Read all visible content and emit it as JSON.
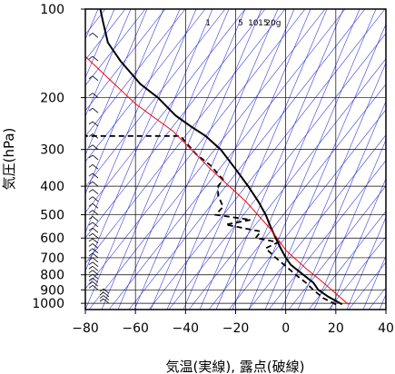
{
  "chart_data": {
    "type": "line",
    "xlabel": "気温(実線), 露点(破線)",
    "ylabel": "気圧(hPa)",
    "xlim": [
      -80,
      40
    ],
    "ylim": [
      1050,
      100
    ],
    "yscale": "log",
    "x_ticks": [
      "−80",
      "−60",
      "−40",
      "−20",
      "0",
      "20",
      "40"
    ],
    "x_tick_values": [
      -80,
      -60,
      -40,
      -20,
      0,
      20,
      40
    ],
    "y_ticks": [
      "100",
      "200",
      "300",
      "400",
      "500",
      "600",
      "700",
      "800",
      "900",
      "1000"
    ],
    "y_tick_values": [
      100,
      200,
      300,
      400,
      500,
      600,
      700,
      800,
      900,
      1000
    ],
    "mixing_ratio_labels": [
      "1",
      "5",
      "10",
      "15",
      "20g"
    ],
    "grid": true,
    "colors": {
      "temperature": "#000000",
      "dewpoint": "#000000",
      "parcel": "#ff0000",
      "background_lines": "#3b3bdc",
      "grid": "#000000"
    },
    "series": [
      {
        "style": "solid",
        "x": [
          22.5,
          17,
          13,
          11,
          7,
          2,
          0,
          -2,
          -4,
          -6,
          -8,
          -11,
          -15,
          -20,
          -26,
          -32,
          -38,
          -44,
          -51,
          -58,
          -66,
          -71,
          -73,
          -74
        ],
        "y": [
          1008,
          950,
          900,
          850,
          800,
          740,
          700,
          650,
          600,
          550,
          500,
          450,
          400,
          350,
          300,
          270,
          250,
          230,
          200,
          180,
          150,
          130,
          110,
          100
        ]
      },
      {
        "style": "dashed",
        "x": [
          20,
          15,
          11,
          8,
          4,
          1,
          -4,
          -8,
          -3,
          -12,
          -10,
          -24,
          -14,
          -28,
          -25,
          -27,
          -27,
          -25,
          -30,
          -36,
          -42,
          -58,
          -80
        ],
        "y": [
          1008,
          960,
          900,
          850,
          800,
          760,
          700,
          650,
          620,
          600,
          570,
          540,
          520,
          500,
          470,
          430,
          400,
          380,
          340,
          310,
          270,
          270,
          270
        ]
      },
      {
        "style": "parcel",
        "x": [
          25,
          15,
          8,
          0,
          -6,
          -16,
          -30,
          -45,
          -60,
          -80
        ],
        "y": [
          1008,
          850,
          760,
          660,
          560,
          450,
          350,
          260,
          210,
          145
        ]
      }
    ],
    "wind_barbs_present": true
  }
}
